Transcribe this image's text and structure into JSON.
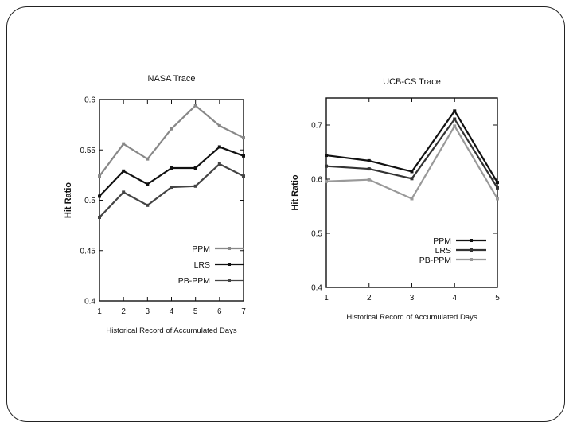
{
  "chart_data": [
    {
      "type": "line",
      "title": "NASA Trace",
      "xlabel": "Historical Record of Accumulated Days",
      "ylabel": "Hit Ratio",
      "x": [
        1,
        2,
        3,
        4,
        5,
        6,
        7
      ],
      "xlim": [
        1,
        7
      ],
      "ylim": [
        0.4,
        0.6
      ],
      "yticks": [
        "0.4",
        "0.45",
        "0.5",
        "0.55",
        "0.6"
      ],
      "xticks": [
        "1",
        "2",
        "3",
        "4",
        "5",
        "6",
        "7"
      ],
      "grid": false,
      "legend_position": "bottom-right",
      "series": [
        {
          "name": "PPM",
          "color": "#888888",
          "values": [
            0.524,
            0.556,
            0.541,
            0.571,
            0.594,
            0.574,
            0.562
          ]
        },
        {
          "name": "LRS",
          "color": "#111111",
          "values": [
            0.504,
            0.529,
            0.516,
            0.532,
            0.532,
            0.553,
            0.544
          ]
        },
        {
          "name": "PB-PPM",
          "color": "#444444",
          "values": [
            0.483,
            0.508,
            0.495,
            0.513,
            0.514,
            0.536,
            0.524
          ]
        }
      ]
    },
    {
      "type": "line",
      "title": "UCB-CS Trace",
      "xlabel": "Historical Record of Accumulated Days",
      "ylabel": "Hit Ratio",
      "x": [
        1,
        2,
        3,
        4,
        5
      ],
      "xlim": [
        1,
        5
      ],
      "ylim": [
        0.4,
        0.75
      ],
      "yticks": [
        "0.4",
        "0.5",
        "0.6",
        "0.7"
      ],
      "xticks": [
        "1",
        "2",
        "3",
        "4",
        "5"
      ],
      "grid": false,
      "legend_position": "bottom-right",
      "series": [
        {
          "name": "PPM",
          "color": "#111111",
          "values": [
            0.644,
            0.634,
            0.614,
            0.726,
            0.594
          ]
        },
        {
          "name": "LRS",
          "color": "#333333",
          "values": [
            0.624,
            0.619,
            0.601,
            0.711,
            0.584
          ]
        },
        {
          "name": "PB-PPM",
          "color": "#999999",
          "values": [
            0.596,
            0.599,
            0.564,
            0.698,
            0.564
          ]
        }
      ]
    }
  ]
}
